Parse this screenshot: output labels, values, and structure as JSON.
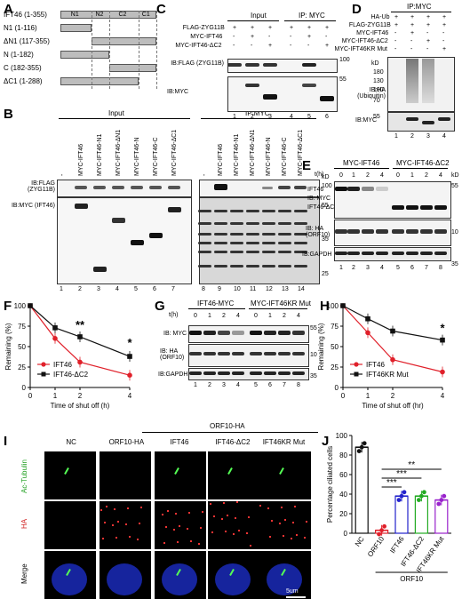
{
  "panels": {
    "A": "A",
    "B": "B",
    "C": "C",
    "D": "D",
    "E": "E",
    "F": "F",
    "G": "G",
    "H": "H",
    "I": "I",
    "J": "J"
  },
  "panelA": {
    "constructs": [
      "IFT46 (1-355)",
      "N1 (1-116)",
      "ΔN1 (117-355)",
      "N (1-182)",
      "C (182-355)",
      "ΔC1 (1-288)"
    ],
    "domains": [
      "N1",
      "N2",
      "C2",
      "C1"
    ]
  },
  "panelB": {
    "headers": {
      "input": "Input",
      "ip": "IP:MYC"
    },
    "lanes": [
      "-",
      "MYC-IFT46",
      "MYC-IFT46-N1",
      "MYC-IFT46-ΔN1",
      "MYC-IFT46-N",
      "MYC-IFT46-C",
      "MYC-IFT46-ΔC1"
    ],
    "blot1_label": "IB:FLAG (ZYG11B)",
    "blot2_label": "IB:MYC (IFT46)",
    "kd": "kD",
    "markers": [
      "100",
      "55",
      "35",
      "25"
    ],
    "lane_numbers": [
      "1",
      "2",
      "3",
      "4",
      "5",
      "6",
      "7",
      "8",
      "9",
      "10",
      "11",
      "12",
      "13",
      "14"
    ]
  },
  "panelC": {
    "headers": {
      "input": "Input",
      "ip": "IP: MYC"
    },
    "rows": [
      {
        "label": "FLAG-ZYG11B",
        "signs": [
          "+",
          "+",
          "+",
          "+",
          "+",
          "+"
        ]
      },
      {
        "label": "MYC-IFT46",
        "signs": [
          "-",
          "+",
          "-",
          "-",
          "+",
          "-"
        ]
      },
      {
        "label": "MYC-IFT46-ΔC2",
        "signs": [
          "-",
          "-",
          "+",
          "-",
          "-",
          "+"
        ]
      }
    ],
    "blot1_label": "IB:FLAG (ZYG11B)",
    "blot2_label": "IB:MYC",
    "markers": [
      "100",
      "55"
    ],
    "lane_numbers": [
      "1",
      "2",
      "3",
      "4",
      "5",
      "6"
    ]
  },
  "panelD": {
    "header": "IP:MYC",
    "rows": [
      {
        "label": "HA-Ub",
        "signs": [
          "+",
          "+",
          "+",
          "+"
        ]
      },
      {
        "label": "FLAG-ZYG11B",
        "signs": [
          "+",
          "+",
          "+",
          "+"
        ]
      },
      {
        "label": "MYC-IFT46",
        "signs": [
          "-",
          "+",
          "-",
          "-"
        ]
      },
      {
        "label": "MYC-IFT46-ΔC2",
        "signs": [
          "-",
          "-",
          "+",
          "-"
        ]
      },
      {
        "label": "MYC-IFT46KR Mut",
        "signs": [
          "-",
          "-",
          "-",
          "+"
        ]
      }
    ],
    "blot1_label": "IB:HA (Ubiquitin)",
    "blot2_label": "IB:MYC",
    "kd": "kD",
    "markers": [
      "180",
      "130",
      "100",
      "70",
      "55"
    ],
    "lane_numbers": [
      "1",
      "2",
      "3",
      "4"
    ]
  },
  "panelE": {
    "groups": [
      "MYC-IFT46",
      "MYC-IFT46-ΔC2"
    ],
    "time_label": "t(h)",
    "times": [
      "0",
      "1",
      "2",
      "4",
      "0",
      "1",
      "2",
      "4"
    ],
    "labels": [
      "IFT46",
      "IB: MYC",
      "IFT46-ΔC2",
      "IB: HA (ORF10)",
      "IB:GAPDH"
    ],
    "kd": "kD",
    "markers": [
      "55",
      "10",
      "35"
    ],
    "lane_numbers": [
      "1",
      "2",
      "3",
      "4",
      "5",
      "6",
      "7",
      "8"
    ]
  },
  "panelG": {
    "groups": [
      "IFT46-MYC",
      "MYC-IFT46KR Mut"
    ],
    "time_label": "t(h)",
    "times": [
      "0",
      "1",
      "2",
      "4",
      "0",
      "1",
      "2",
      "4"
    ],
    "labels": [
      "IB: MYC",
      "IB: HA (ORF10)",
      "IB:GAPDH"
    ],
    "markers": [
      "55",
      "10",
      "35"
    ],
    "lane_numbers": [
      "1",
      "2",
      "3",
      "4",
      "5",
      "6",
      "7",
      "8"
    ]
  },
  "panelI": {
    "columns": [
      "NC",
      "ORF10-HA",
      "IFT46",
      "IFT46-ΔC2",
      "IFT46KR Mut"
    ],
    "group_label": "ORF10-HA",
    "rows": [
      "Ac-Tubulin",
      "HA",
      "Merge"
    ],
    "scale": "5um"
  },
  "chart_data": [
    {
      "type": "line",
      "panel": "F",
      "x": [
        0,
        1,
        2,
        4
      ],
      "xlabel": "Time of shut off (h)",
      "ylabel": "Remaining (%)",
      "ylim": [
        0,
        100
      ],
      "yticks": [
        "0",
        "25",
        "50",
        "75",
        "100"
      ],
      "xticks": [
        "0",
        "1",
        "2",
        "4"
      ],
      "series": [
        {
          "name": "IFT46",
          "values": [
            100,
            60,
            31,
            15
          ],
          "color": "#e0202a"
        },
        {
          "name": "IFT46-ΔC2",
          "values": [
            100,
            73,
            62,
            38
          ],
          "color": "#111111"
        }
      ],
      "annotations": [
        "**",
        "*"
      ],
      "legend": "bottom-left"
    },
    {
      "type": "line",
      "panel": "H",
      "x": [
        0,
        1,
        2,
        4
      ],
      "xlabel": "Time of shut off (hr)",
      "ylabel": "Remaining (%)",
      "ylim": [
        0,
        100
      ],
      "yticks": [
        "0",
        "25",
        "50",
        "75",
        "100"
      ],
      "xticks": [
        "0",
        "1",
        "2",
        "4"
      ],
      "series": [
        {
          "name": "IFT46",
          "values": [
            100,
            67,
            34,
            19
          ],
          "color": "#e0202a"
        },
        {
          "name": "IFT46KR Mut",
          "values": [
            100,
            84,
            69,
            58
          ],
          "color": "#111111"
        }
      ],
      "annotations": [
        "*"
      ],
      "legend": "bottom-left"
    },
    {
      "type": "bar",
      "panel": "J",
      "categories": [
        "NC",
        "ORF10",
        "IFT46",
        "IFT46-ΔC2",
        "IFT46KR Mut"
      ],
      "values": [
        88,
        3,
        38,
        38,
        34
      ],
      "colors": [
        "#111111",
        "#e0202a",
        "#2222cc",
        "#22aa22",
        "#9922cc"
      ],
      "ylabel": "Percentage ciliated cells",
      "ylim": [
        0,
        100
      ],
      "yticks": [
        "0",
        "20",
        "40",
        "60",
        "80",
        "100"
      ],
      "group_label": "ORF10",
      "annotations": [
        "***",
        "***",
        "**"
      ]
    }
  ]
}
